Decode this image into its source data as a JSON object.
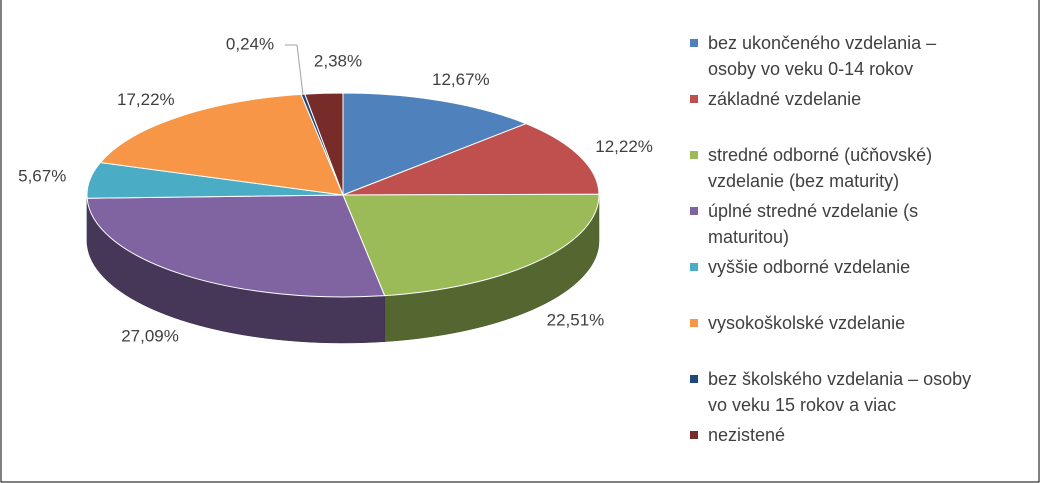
{
  "chart_data": {
    "type": "pie3d",
    "categories": [
      "bez ukončeného vzdelania – osoby vo veku 0-14 rokov",
      "základné vzdelanie",
      "stredné odborné (učňovské) vzdelanie (bez maturity)",
      "úplné stredné vzdelanie (s maturitou)",
      "vyššie odborné vzdelanie",
      "vysokoškolské vzdelanie",
      "bez školského vzdelania – osoby vo veku 15 rokov a viac",
      "nezistené"
    ],
    "values": [
      12.67,
      12.22,
      22.51,
      27.09,
      5.67,
      17.22,
      0.24,
      2.38
    ],
    "value_labels": [
      "12,67%",
      "12,22%",
      "22,51%",
      "27,09%",
      "5,67%",
      "17,22%",
      "0,24%",
      "2,38%"
    ],
    "colors": [
      "#4f81bd",
      "#c0504d",
      "#9bbb59",
      "#8064a2",
      "#4bacc6",
      "#f79646",
      "#1f497d",
      "#772c2a"
    ],
    "legend": "right"
  }
}
